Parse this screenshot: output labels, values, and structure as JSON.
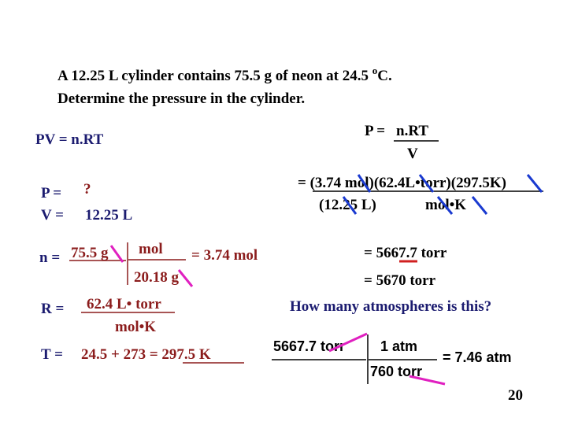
{
  "problem": {
    "line1": [
      "A 12.25 L cylinder contains 75.5 g of neon at 24.5 ",
      "o",
      "C."
    ],
    "line2": "Determine the pressure in the cylinder."
  },
  "left": {
    "equation": "PV = n.RT",
    "p_label": "P =",
    "p_value": "?",
    "v_label": "V =",
    "v_value": "12.25 L",
    "n_label": "n =",
    "n_numerator": "75.5 g",
    "n_factor_top": "mol",
    "n_factor_bottom": "20.18 g",
    "n_result": "= 3.74 mol",
    "r_label": "R =",
    "r_top": "62.4 L• torr",
    "r_bottom": "mol•K",
    "t_label": "T =",
    "t_value": "24.5 + 273 = 297.5 K"
  },
  "right": {
    "p_label": "P =",
    "p_numerator": "n.RT",
    "p_denominator": "V",
    "sub_numerator": "= (3.74 mol)(62.4L•torr)(297.5K)",
    "sub_denominator_left": "(12.25 L)",
    "sub_denominator_right": "mol•K",
    "result": "= 5667.7 torr",
    "rounded": "= 5670 torr",
    "question": "How many atmospheres is this?",
    "conv_start": "5667.7 torr",
    "conv_top": "1 atm",
    "conv_bottom": "760 torr",
    "conv_result": "= 7.46 atm"
  },
  "page_number": "20"
}
